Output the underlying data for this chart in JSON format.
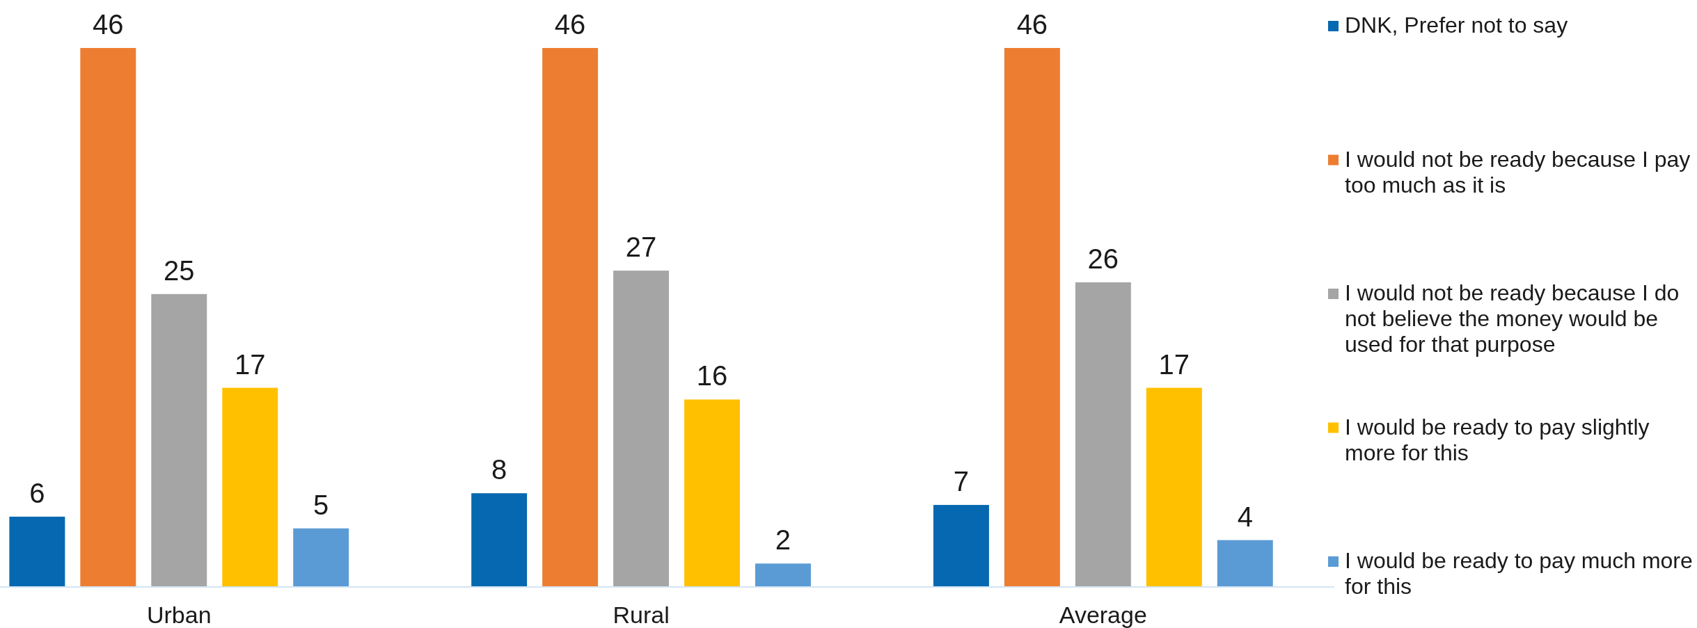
{
  "chart_data": {
    "type": "bar",
    "categories": [
      "Urban",
      "Rural",
      "Average"
    ],
    "series": [
      {
        "name": "DNK, Prefer not to say",
        "color": "#0568b0",
        "values": [
          6,
          8,
          7
        ]
      },
      {
        "name": "I would not be ready because I pay too much as it is",
        "color": "#ed7d31",
        "values": [
          46,
          46,
          46
        ]
      },
      {
        "name": "I would not be ready because I do not believe the money would be used for that purpose",
        "color": "#a5a5a5",
        "values": [
          25,
          27,
          26
        ]
      },
      {
        "name": "I would be ready to pay slightly more for this",
        "color": "#ffc000",
        "values": [
          17,
          16,
          17
        ]
      },
      {
        "name": "I would be ready to pay much more for this",
        "color": "#5b9bd5",
        "values": [
          5,
          2,
          4
        ]
      }
    ],
    "data_labels": true,
    "legend": "right"
  }
}
